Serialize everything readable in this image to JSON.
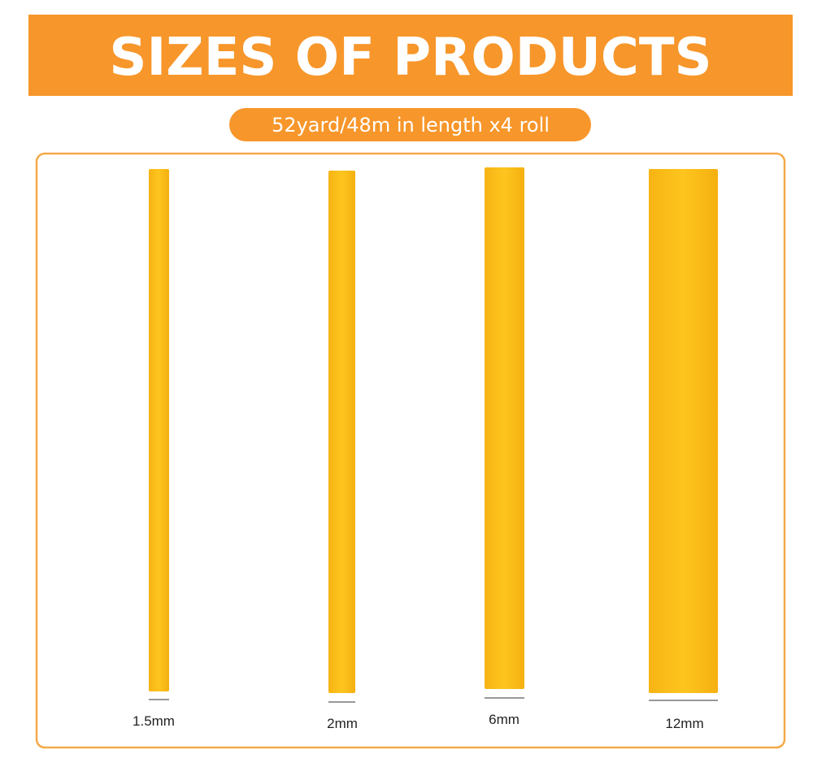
{
  "header": {
    "title": "SIZES OF PRODUCTS",
    "subtitle": "52yard/48m in length x4 roll"
  },
  "products": [
    {
      "label": "1.5mm"
    },
    {
      "label": "2mm"
    },
    {
      "label": "6mm"
    },
    {
      "label": "12mm"
    }
  ]
}
